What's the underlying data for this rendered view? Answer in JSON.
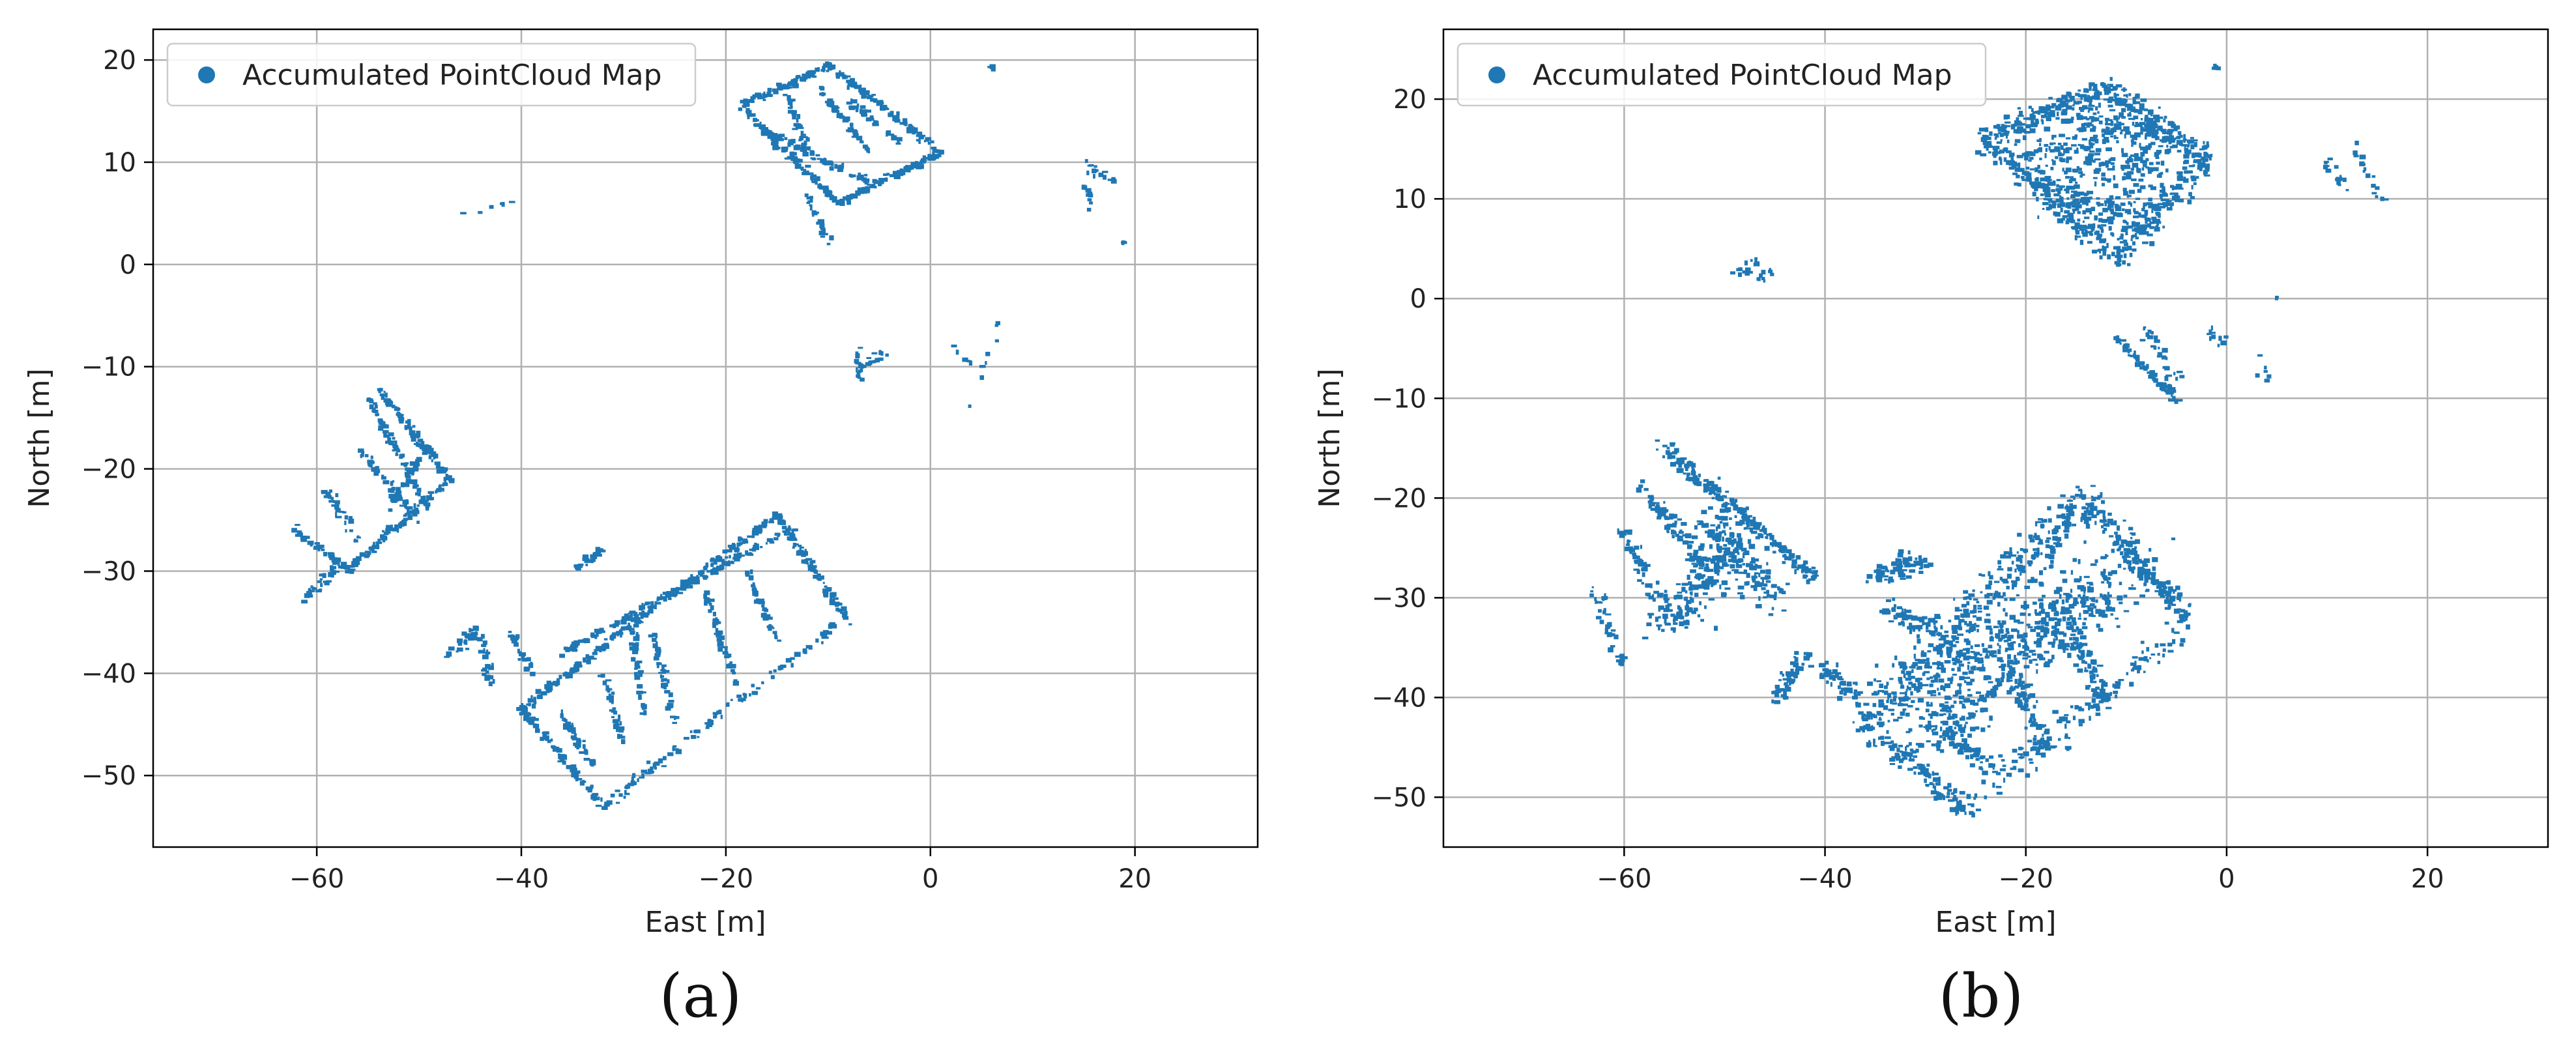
{
  "charts": {
    "a": {
      "caption": "(a)"
    },
    "b": {
      "caption": "(b)"
    }
  },
  "chart_data": [
    {
      "type": "scatter",
      "panel": "a",
      "caption": "(a)",
      "xlabel": "East [m]",
      "ylabel": "North [m]",
      "xlim": [
        -76,
        32
      ],
      "ylim": [
        -57,
        23
      ],
      "xticks": [
        -60,
        -40,
        -20,
        0,
        20
      ],
      "yticks": [
        -50,
        -40,
        -30,
        -20,
        -10,
        0,
        10,
        20
      ],
      "grid": true,
      "legend": {
        "position": "top-left",
        "entries": [
          "Accumulated PointCloud Map"
        ]
      },
      "series": [
        {
          "name": "Accumulated PointCloud Map",
          "color": "#1f77b4",
          "density": 0.35,
          "segments": [
            {
              "from": [
                -18.5,
                15.5
              ],
              "to": [
                -10,
                19.5
              ],
              "n": 90,
              "s": 0.35
            },
            {
              "from": [
                -10,
                19.5
              ],
              "to": [
                1,
                11
              ],
              "n": 110,
              "s": 0.35
            },
            {
              "from": [
                1,
                11
              ],
              "to": [
                -9,
                6
              ],
              "n": 100,
              "s": 0.35
            },
            {
              "from": [
                -9,
                6
              ],
              "to": [
                -18.5,
                15.5
              ],
              "n": 110,
              "s": 0.35
            },
            {
              "from": [
                -16,
                13
              ],
              "to": [
                -6,
                8
              ],
              "n": 70,
              "s": 0.35
            },
            {
              "from": [
                -14,
                16.5
              ],
              "to": [
                -12,
                11
              ],
              "n": 40,
              "s": 0.3
            },
            {
              "from": [
                -11,
                17.5
              ],
              "to": [
                -6,
                11
              ],
              "n": 50,
              "s": 0.3
            },
            {
              "from": [
                -8,
                16
              ],
              "to": [
                -3,
                12
              ],
              "n": 40,
              "s": 0.3
            },
            {
              "from": [
                -12,
                7
              ],
              "to": [
                -10,
                2
              ],
              "n": 30,
              "s": 0.4
            },
            {
              "from": [
                -54,
                -12
              ],
              "to": [
                -47,
                -21
              ],
              "n": 90,
              "s": 0.4
            },
            {
              "from": [
                -47,
                -21
              ],
              "to": [
                -57,
                -30
              ],
              "n": 100,
              "s": 0.4
            },
            {
              "from": [
                -57,
                -30
              ],
              "to": [
                -62,
                -26
              ],
              "n": 40,
              "s": 0.5
            },
            {
              "from": [
                -55,
                -13
              ],
              "to": [
                -49,
                -24
              ],
              "n": 80,
              "s": 0.3
            },
            {
              "from": [
                -53,
                -24
              ],
              "to": [
                -50,
                -19
              ],
              "n": 30,
              "s": 0.3
            },
            {
              "from": [
                -56,
                -18
              ],
              "to": [
                -50,
                -25
              ],
              "n": 45,
              "s": 0.4
            },
            {
              "from": [
                -59,
                -22
              ],
              "to": [
                -56,
                -27
              ],
              "n": 30,
              "s": 0.5
            },
            {
              "from": [
                -62,
                -33
              ],
              "to": [
                -58,
                -30
              ],
              "n": 30,
              "s": 0.4
            },
            {
              "from": [
                -40,
                -43.5
              ],
              "to": [
                -15,
                -24.5
              ],
              "n": 230,
              "s": 0.35
            },
            {
              "from": [
                -40,
                -43.5
              ],
              "to": [
                -32,
                -53
              ],
              "n": 90,
              "s": 0.35
            },
            {
              "from": [
                -15,
                -24.5
              ],
              "to": [
                -8,
                -35
              ],
              "n": 100,
              "s": 0.35
            },
            {
              "from": [
                -32,
                -53
              ],
              "to": [
                -9,
                -35
              ],
              "n": 100,
              "s": 0.5
            },
            {
              "from": [
                -36,
                -38
              ],
              "to": [
                -13,
                -25.5
              ],
              "n": 150,
              "s": 0.35
            },
            {
              "from": [
                -32,
                -40
              ],
              "to": [
                -30,
                -47
              ],
              "n": 40,
              "s": 0.35
            },
            {
              "from": [
                -27,
                -36
              ],
              "to": [
                -25,
                -45
              ],
              "n": 50,
              "s": 0.35
            },
            {
              "from": [
                -22,
                -32
              ],
              "to": [
                -19,
                -41
              ],
              "n": 50,
              "s": 0.35
            },
            {
              "from": [
                -18,
                -30
              ],
              "to": [
                -15,
                -37
              ],
              "n": 40,
              "s": 0.35
            },
            {
              "from": [
                -29,
                -36
              ],
              "to": [
                -28,
                -44
              ],
              "n": 40,
              "s": 0.4
            },
            {
              "from": [
                -36,
                -44
              ],
              "to": [
                -33,
                -49
              ],
              "n": 40,
              "s": 0.4
            },
            {
              "from": [
                -35,
                -30
              ],
              "to": [
                -32,
                -28
              ],
              "n": 25,
              "s": 0.5
            },
            {
              "from": [
                -47,
                -38
              ],
              "to": [
                -44,
                -35.5
              ],
              "n": 30,
              "s": 0.6
            },
            {
              "from": [
                -44,
                -36
              ],
              "to": [
                -43,
                -41
              ],
              "n": 25,
              "s": 0.5
            },
            {
              "from": [
                -41,
                -36
              ],
              "to": [
                -39,
                -40
              ],
              "n": 25,
              "s": 0.5
            },
            {
              "from": [
                -7,
                -10
              ],
              "to": [
                -4,
                -8.5
              ],
              "n": 18,
              "s": 0.5
            },
            {
              "from": [
                -7,
                -8
              ],
              "to": [
                -7,
                -12
              ],
              "n": 15,
              "s": 0.4
            },
            {
              "from": [
                15,
                10
              ],
              "to": [
                18,
                8
              ],
              "n": 16,
              "s": 0.5
            },
            {
              "from": [
                15,
                8
              ],
              "to": [
                16,
                5
              ],
              "n": 10,
              "s": 0.4
            },
            {
              "from": [
                -46,
                5
              ],
              "to": [
                -40,
                6
              ],
              "n": 6,
              "s": 0.4
            },
            {
              "from": [
                6,
                19.5
              ],
              "to": [
                6,
                19
              ],
              "n": 4,
              "s": 0.2
            },
            {
              "from": [
                19,
                2.5
              ],
              "to": [
                19,
                2
              ],
              "n": 3,
              "s": 0.2
            },
            {
              "from": [
                7,
                -5
              ],
              "to": [
                4,
                -14
              ],
              "n": 8,
              "s": 0.3
            },
            {
              "from": [
                2.5,
                -8
              ],
              "to": [
                4,
                -10
              ],
              "n": 5,
              "s": 0.3
            }
          ]
        }
      ]
    },
    {
      "type": "scatter",
      "panel": "b",
      "caption": "(b)",
      "xlabel": "East [m]",
      "ylabel": "North [m]",
      "xlim": [
        -78,
        32
      ],
      "ylim": [
        -55,
        27
      ],
      "xticks": [
        -60,
        -40,
        -20,
        0,
        20
      ],
      "yticks": [
        -50,
        -40,
        -30,
        -20,
        -10,
        0,
        10,
        20
      ],
      "grid": true,
      "legend": {
        "position": "top-left",
        "entries": [
          "Accumulated PointCloud Map"
        ]
      },
      "series": [
        {
          "name": "Accumulated PointCloud Map",
          "color": "#1f77b4",
          "density": 1.0,
          "segments": [
            {
              "from": [
                -24,
                16
              ],
              "to": [
                -12,
                21
              ],
              "n": 160,
              "s": 1.2
            },
            {
              "from": [
                -12,
                21
              ],
              "to": [
                -2,
                14
              ],
              "n": 150,
              "s": 1.2
            },
            {
              "from": [
                -2,
                14
              ],
              "to": [
                -11,
                4
              ],
              "n": 150,
              "s": 1.2
            },
            {
              "from": [
                -11,
                4
              ],
              "to": [
                -24,
                16
              ],
              "n": 160,
              "s": 1.2
            },
            {
              "from": [
                -20,
                15
              ],
              "to": [
                -6,
                13
              ],
              "n": 200,
              "s": 2.4
            },
            {
              "from": [
                -18,
                11
              ],
              "to": [
                -8,
                8
              ],
              "n": 160,
              "s": 2.2
            },
            {
              "from": [
                -16,
                18
              ],
              "to": [
                -5,
                16
              ],
              "n": 150,
              "s": 1.8
            },
            {
              "from": [
                -56,
                -15
              ],
              "to": [
                -41,
                -28
              ],
              "n": 220,
              "s": 0.8
            },
            {
              "from": [
                -49,
                -25
              ],
              "to": [
                -56,
                -33
              ],
              "n": 170,
              "s": 2.0
            },
            {
              "from": [
                -52,
                -22
              ],
              "to": [
                -45,
                -30
              ],
              "n": 150,
              "s": 1.8
            },
            {
              "from": [
                -58,
                -19
              ],
              "to": [
                -52,
                -27
              ],
              "n": 90,
              "s": 0.8
            },
            {
              "from": [
                -60,
                -23
              ],
              "to": [
                -57,
                -30
              ],
              "n": 50,
              "s": 0.7
            },
            {
              "from": [
                -63,
                -29
              ],
              "to": [
                -60,
                -37
              ],
              "n": 40,
              "s": 0.8
            },
            {
              "from": [
                -36,
                -43
              ],
              "to": [
                -14,
                -20
              ],
              "n": 360,
              "s": 2.2
            },
            {
              "from": [
                -33,
                -40
              ],
              "to": [
                -8,
                -26
              ],
              "n": 320,
              "s": 2.8
            },
            {
              "from": [
                -30,
                -44
              ],
              "to": [
                -12,
                -30
              ],
              "n": 280,
              "s": 3.0
            },
            {
              "from": [
                -14,
                -20
              ],
              "to": [
                -4,
                -32
              ],
              "n": 160,
              "s": 1.2
            },
            {
              "from": [
                -36,
                -43
              ],
              "to": [
                -26,
                -51
              ],
              "n": 120,
              "s": 1.0
            },
            {
              "from": [
                -26,
                -51
              ],
              "to": [
                -4,
                -33
              ],
              "n": 140,
              "s": 1.5
            },
            {
              "from": [
                -22,
                -36
              ],
              "to": [
                -18,
                -45
              ],
              "n": 70,
              "s": 1.0
            },
            {
              "from": [
                -16,
                -32
              ],
              "to": [
                -12,
                -40
              ],
              "n": 70,
              "s": 1.0
            },
            {
              "from": [
                -28,
                -42
              ],
              "to": [
                -24,
                -47
              ],
              "n": 60,
              "s": 1.0
            },
            {
              "from": [
                -35,
                -28
              ],
              "to": [
                -30,
                -26
              ],
              "n": 80,
              "s": 1.0
            },
            {
              "from": [
                -34,
                -31
              ],
              "to": [
                -29,
                -33
              ],
              "n": 70,
              "s": 1.0
            },
            {
              "from": [
                -45,
                -40
              ],
              "to": [
                -42,
                -36
              ],
              "n": 60,
              "s": 1.0
            },
            {
              "from": [
                -40,
                -37
              ],
              "to": [
                -37,
                -40
              ],
              "n": 50,
              "s": 1.0
            },
            {
              "from": [
                -11,
                -4
              ],
              "to": [
                -5,
                -10
              ],
              "n": 80,
              "s": 0.5
            },
            {
              "from": [
                -8,
                -3
              ],
              "to": [
                -5,
                -8
              ],
              "n": 30,
              "s": 0.8
            },
            {
              "from": [
                -2,
                -3
              ],
              "to": [
                0,
                -5
              ],
              "n": 10,
              "s": 0.6
            },
            {
              "from": [
                3,
                -6
              ],
              "to": [
                4,
                -8
              ],
              "n": 6,
              "s": 0.5
            },
            {
              "from": [
                10,
                14
              ],
              "to": [
                12,
                11
              ],
              "n": 18,
              "s": 0.6
            },
            {
              "from": [
                13,
                15
              ],
              "to": [
                16,
                9
              ],
              "n": 16,
              "s": 0.6
            },
            {
              "from": [
                -49,
                3
              ],
              "to": [
                -46,
                2
              ],
              "n": 14,
              "s": 0.5
            },
            {
              "from": [
                -48,
                4
              ],
              "to": [
                -45,
                2.5
              ],
              "n": 10,
              "s": 0.5
            },
            {
              "from": [
                -1,
                23.5
              ],
              "to": [
                -1,
                23
              ],
              "n": 4,
              "s": 0.2
            },
            {
              "from": [
                5,
                0.2
              ],
              "to": [
                5,
                0
              ],
              "n": 2,
              "s": 0.1
            }
          ]
        }
      ]
    }
  ]
}
